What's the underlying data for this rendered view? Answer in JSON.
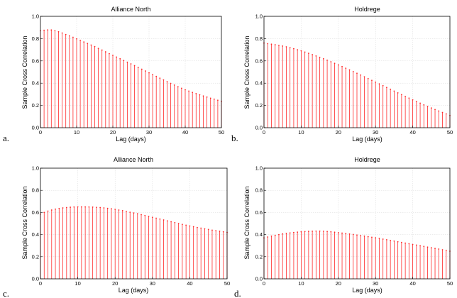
{
  "chart_data": [
    {
      "type": "stem",
      "panel_letter": "a.",
      "title": "Alliance North",
      "xlabel": "Lag (days)",
      "ylabel": "Sample Cross Correlation",
      "xlim": [
        0,
        50
      ],
      "ylim": [
        0,
        1.0
      ],
      "xticks": [
        0,
        10,
        20,
        30,
        40,
        50
      ],
      "yticks": [
        0,
        0.2,
        0.4,
        0.6,
        0.8,
        1.0
      ],
      "ytick_labels": [
        "0.0",
        "0.2",
        "0.4",
        "0.6",
        "0.8",
        "1.0"
      ],
      "grid": true,
      "color": "#ff2a2a",
      "x": [
        0,
        1,
        2,
        3,
        4,
        5,
        6,
        7,
        8,
        9,
        10,
        11,
        12,
        13,
        14,
        15,
        16,
        17,
        18,
        19,
        20,
        21,
        22,
        23,
        24,
        25,
        26,
        27,
        28,
        29,
        30,
        31,
        32,
        33,
        34,
        35,
        36,
        37,
        38,
        39,
        40,
        41,
        42,
        43,
        44,
        45,
        46,
        47,
        48,
        49,
        50
      ],
      "values": [
        0.87,
        0.875,
        0.878,
        0.877,
        0.871,
        0.861,
        0.85,
        0.837,
        0.825,
        0.812,
        0.798,
        0.784,
        0.77,
        0.756,
        0.742,
        0.728,
        0.712,
        0.697,
        0.681,
        0.665,
        0.65,
        0.634,
        0.619,
        0.603,
        0.588,
        0.573,
        0.557,
        0.541,
        0.525,
        0.509,
        0.493,
        0.477,
        0.461,
        0.445,
        0.429,
        0.413,
        0.398,
        0.383,
        0.368,
        0.354,
        0.341,
        0.329,
        0.317,
        0.306,
        0.295,
        0.285,
        0.275,
        0.265,
        0.256,
        0.247,
        0.238
      ]
    },
    {
      "type": "stem",
      "panel_letter": "b.",
      "title": "Holdrege",
      "xlabel": "Lag (days)",
      "ylabel": "Sample Cross Correlation",
      "xlim": [
        0,
        50
      ],
      "ylim": [
        0,
        1.0
      ],
      "xticks": [
        0,
        10,
        20,
        30,
        40,
        50
      ],
      "yticks": [
        0,
        0.2,
        0.4,
        0.6,
        0.8,
        1.0
      ],
      "ytick_labels": [
        "0.0",
        "0.2",
        "0.4",
        "0.6",
        "0.8",
        "1.0"
      ],
      "grid": true,
      "color": "#ff2a2a",
      "x": [
        0,
        1,
        2,
        3,
        4,
        5,
        6,
        7,
        8,
        9,
        10,
        11,
        12,
        13,
        14,
        15,
        16,
        17,
        18,
        19,
        20,
        21,
        22,
        23,
        24,
        25,
        26,
        27,
        28,
        29,
        30,
        31,
        32,
        33,
        34,
        35,
        36,
        37,
        38,
        39,
        40,
        41,
        42,
        43,
        44,
        45,
        46,
        47,
        48,
        49,
        50
      ],
      "values": [
        0.76,
        0.755,
        0.75,
        0.745,
        0.739,
        0.733,
        0.726,
        0.718,
        0.709,
        0.7,
        0.69,
        0.679,
        0.668,
        0.656,
        0.644,
        0.632,
        0.619,
        0.606,
        0.592,
        0.578,
        0.564,
        0.549,
        0.534,
        0.519,
        0.504,
        0.489,
        0.473,
        0.457,
        0.441,
        0.425,
        0.409,
        0.393,
        0.377,
        0.361,
        0.345,
        0.329,
        0.313,
        0.297,
        0.281,
        0.266,
        0.25,
        0.235,
        0.22,
        0.205,
        0.191,
        0.177,
        0.163,
        0.15,
        0.137,
        0.124,
        0.11
      ]
    },
    {
      "type": "stem",
      "panel_letter": "c.",
      "title": "Alliance North",
      "xlabel": "Lag (days)",
      "ylabel": "Sample Cross Correlation",
      "xlim": [
        0,
        50
      ],
      "ylim": [
        0,
        1.0
      ],
      "xticks": [
        0,
        10,
        20,
        30,
        40,
        50
      ],
      "yticks": [
        0,
        0.2,
        0.4,
        0.6,
        0.8,
        1.0
      ],
      "ytick_labels": [
        "0.0",
        "0.2",
        "0.4",
        "0.6",
        "0.8",
        "1.0"
      ],
      "grid": true,
      "color": "#ff2a2a",
      "x": [
        0,
        1,
        2,
        3,
        4,
        5,
        6,
        7,
        8,
        9,
        10,
        11,
        12,
        13,
        14,
        15,
        16,
        17,
        18,
        19,
        20,
        21,
        22,
        23,
        24,
        25,
        26,
        27,
        28,
        29,
        30,
        31,
        32,
        33,
        34,
        35,
        36,
        37,
        38,
        39,
        40,
        41,
        42,
        43,
        44,
        45,
        46,
        47,
        48,
        49,
        50
      ],
      "values": [
        0.585,
        0.6,
        0.612,
        0.622,
        0.63,
        0.636,
        0.641,
        0.644,
        0.647,
        0.649,
        0.65,
        0.65,
        0.65,
        0.649,
        0.648,
        0.646,
        0.644,
        0.641,
        0.637,
        0.633,
        0.628,
        0.622,
        0.616,
        0.609,
        0.602,
        0.595,
        0.588,
        0.58,
        0.572,
        0.564,
        0.556,
        0.548,
        0.54,
        0.532,
        0.524,
        0.516,
        0.508,
        0.5,
        0.492,
        0.485,
        0.478,
        0.471,
        0.464,
        0.458,
        0.452,
        0.446,
        0.44,
        0.435,
        0.43,
        0.425,
        0.42
      ]
    },
    {
      "type": "stem",
      "panel_letter": "d.",
      "title": "Holdrege",
      "xlabel": "Lag (days)",
      "ylabel": "Sample Cross Correlation",
      "xlim": [
        0,
        50
      ],
      "ylim": [
        0,
        1.0
      ],
      "xticks": [
        0,
        10,
        20,
        30,
        40,
        50
      ],
      "yticks": [
        0,
        0.2,
        0.4,
        0.6,
        0.8,
        1.0
      ],
      "ytick_labels": [
        "0.0",
        "0.2",
        "0.4",
        "0.6",
        "0.8",
        "1.0"
      ],
      "grid": true,
      "color": "#ff2a2a",
      "x": [
        0,
        1,
        2,
        3,
        4,
        5,
        6,
        7,
        8,
        9,
        10,
        11,
        12,
        13,
        14,
        15,
        16,
        17,
        18,
        19,
        20,
        21,
        22,
        23,
        24,
        25,
        26,
        27,
        28,
        29,
        30,
        31,
        32,
        33,
        34,
        35,
        36,
        37,
        38,
        39,
        40,
        41,
        42,
        43,
        44,
        45,
        46,
        47,
        48,
        49,
        50
      ],
      "values": [
        0.37,
        0.378,
        0.386,
        0.393,
        0.4,
        0.406,
        0.411,
        0.415,
        0.419,
        0.422,
        0.425,
        0.427,
        0.429,
        0.43,
        0.431,
        0.431,
        0.43,
        0.428,
        0.425,
        0.421,
        0.417,
        0.413,
        0.409,
        0.405,
        0.401,
        0.396,
        0.391,
        0.386,
        0.381,
        0.376,
        0.371,
        0.365,
        0.359,
        0.353,
        0.347,
        0.341,
        0.335,
        0.329,
        0.323,
        0.317,
        0.311,
        0.305,
        0.299,
        0.293,
        0.287,
        0.281,
        0.275,
        0.269,
        0.263,
        0.257,
        0.25
      ]
    }
  ]
}
